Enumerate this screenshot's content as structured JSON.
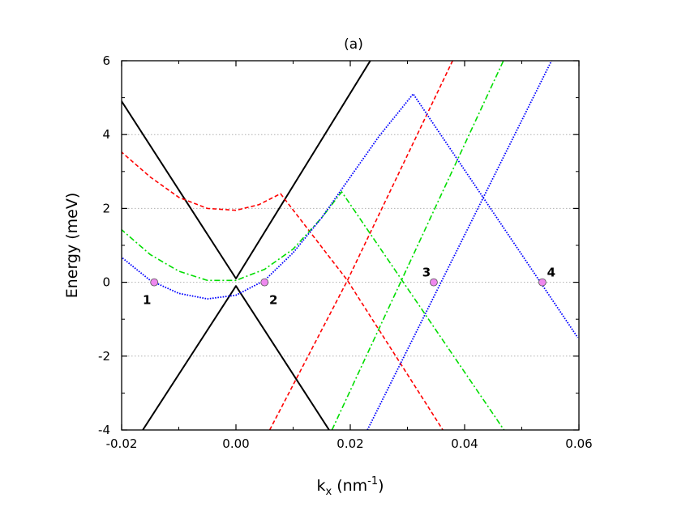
{
  "chart_data": {
    "type": "line",
    "title": "(a)",
    "xlabel": "k",
    "xlabel_sub": "x",
    "xlabel_unit_open": " (nm",
    "xlabel_unit_sup": "-1",
    "xlabel_unit_close": ")",
    "ylabel": "Energy (meV)",
    "xlim": [
      -0.02,
      0.06
    ],
    "ylim": [
      -4,
      6
    ],
    "x_ticks": [
      -0.02,
      0.0,
      0.02,
      0.04,
      0.06
    ],
    "x_tick_labels": [
      "-0.02",
      "0.00",
      "0.02",
      "0.04",
      "0.06"
    ],
    "y_ticks": [
      -4,
      -2,
      0,
      2,
      4,
      6
    ],
    "y_tick_labels": [
      "-4",
      "-2",
      "0",
      "2",
      "4",
      "6"
    ],
    "grid": "horizontal dotted",
    "series": [
      {
        "color": "#000000",
        "style": "solid",
        "segments": [
          [
            [
              -0.0202,
              4.95
            ],
            [
              0.0,
              0.1
            ],
            [
              0.0235,
              6.0
            ]
          ],
          [
            [
              -0.0163,
              -4.0
            ],
            [
              0.0,
              -0.1
            ],
            [
              0.0163,
              -4.0
            ]
          ]
        ]
      },
      {
        "color": "#ff0000",
        "style": "dashed",
        "segments": [
          [
            [
              -0.0202,
              3.55
            ],
            [
              -0.015,
              2.85
            ],
            [
              -0.01,
              2.3
            ],
            [
              -0.005,
              2.0
            ],
            [
              0.0,
              1.95
            ],
            [
              0.004,
              2.1
            ],
            [
              0.0078,
              2.4
            ],
            [
              0.0195,
              0.05
            ],
            [
              0.0362,
              -4.0
            ]
          ],
          [
            [
              0.0059,
              -4.0
            ],
            [
              0.0195,
              0.05
            ],
            [
              0.0379,
              6.0
            ]
          ]
        ]
      },
      {
        "color": "#00dd00",
        "style": "dash-dot",
        "segments": [
          [
            [
              -0.0202,
              1.45
            ],
            [
              -0.015,
              0.75
            ],
            [
              -0.01,
              0.3
            ],
            [
              -0.005,
              0.05
            ],
            [
              0.0,
              0.05
            ],
            [
              0.005,
              0.35
            ],
            [
              0.01,
              0.9
            ],
            [
              0.015,
              1.75
            ],
            [
              0.0185,
              2.45
            ],
            [
              0.0469,
              -4.0
            ]
          ],
          [
            [
              0.0168,
              -4.0
            ],
            [
              0.0468,
              6.0
            ]
          ]
        ]
      },
      {
        "color": "#0000ff",
        "style": "dotted",
        "segments": [
          [
            [
              -0.0202,
              0.7
            ],
            [
              -0.015,
              0.05
            ],
            [
              -0.01,
              -0.3
            ],
            [
              -0.005,
              -0.45
            ],
            [
              0.0,
              -0.35
            ],
            [
              0.005,
              0.05
            ],
            [
              0.01,
              0.8
            ],
            [
              0.015,
              1.75
            ],
            [
              0.02,
              2.85
            ],
            [
              0.025,
              3.95
            ],
            [
              0.031,
              5.1
            ],
            [
              0.0598,
              -1.5
            ]
          ],
          [
            [
              0.023,
              -4.0
            ],
            [
              0.0552,
              6.0
            ]
          ]
        ]
      }
    ],
    "markers": [
      {
        "x": -0.0143,
        "y": 0.0,
        "label": "1",
        "color": "#ee88ee"
      },
      {
        "x": 0.005,
        "y": 0.0,
        "label": "2",
        "color": "#ee88ee"
      },
      {
        "x": 0.0346,
        "y": 0.0,
        "label": "3",
        "color": "#ee88ee"
      },
      {
        "x": 0.0536,
        "y": 0.0,
        "label": "4",
        "color": "#ee88ee"
      }
    ]
  }
}
